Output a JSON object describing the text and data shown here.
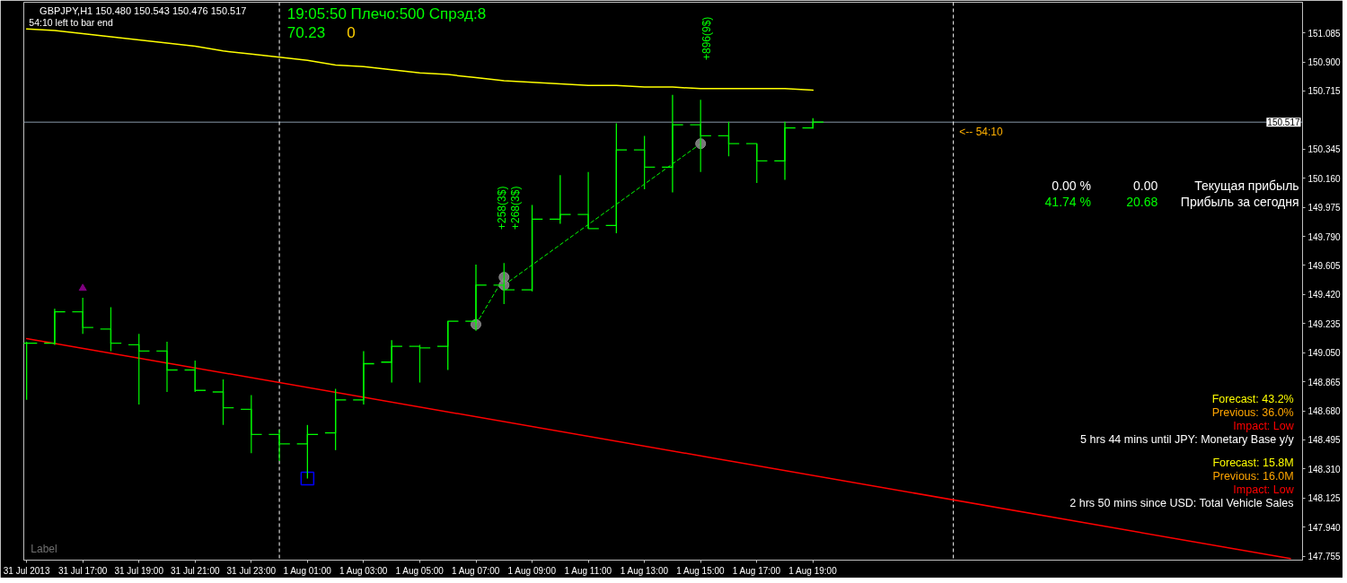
{
  "chart_data": {
    "type": "candlestick",
    "title": "GBPJPY,H1 150.480 150.543 150.476 150.517",
    "subtitle": "54:10 left to bar end",
    "colors": [
      "#00ff00",
      "#00ff00",
      "#00e800",
      "#00e800",
      "#00e800",
      "#00e800",
      "#00e800",
      "#00e800",
      "#00e800",
      "#00e800",
      "#00ff00",
      "#00ff00",
      "#00ff00",
      "#00ff00",
      "#00e800",
      "#00ff00",
      "#00ff00",
      "#00e800",
      "#00ff00",
      "#00ff00",
      "#00e800",
      "#00ff00",
      "#00e800",
      "#00ff00",
      "#00e800",
      "#00e800",
      "#00e800",
      "#00ff00",
      "#00ff00"
    ],
    "x": [
      "2013-07-31T15:00",
      "2013-07-31T16:00",
      "2013-07-31T17:00",
      "2013-07-31T18:00",
      "2013-07-31T19:00",
      "2013-07-31T20:00",
      "2013-07-31T21:00",
      "2013-07-31T22:00",
      "2013-07-31T23:00",
      "2013-08-01T00:00",
      "2013-08-01T01:00",
      "2013-08-01T02:00",
      "2013-08-01T03:00",
      "2013-08-01T04:00",
      "2013-08-01T05:00",
      "2013-08-01T06:00",
      "2013-08-01T07:00",
      "2013-08-01T08:00",
      "2013-08-01T09:00",
      "2013-08-01T10:00",
      "2013-08-01T11:00",
      "2013-08-01T12:00",
      "2013-08-01T13:00",
      "2013-08-01T14:00",
      "2013-08-01T15:00",
      "2013-08-01T16:00",
      "2013-08-01T17:00",
      "2013-08-01T18:00",
      "2013-08-01T19:00"
    ],
    "ohlc": [
      [
        149.11,
        149.12,
        148.75,
        149.11
      ],
      [
        149.11,
        149.33,
        149.1,
        149.31
      ],
      [
        149.31,
        149.4,
        149.17,
        149.21
      ],
      [
        149.2,
        149.34,
        149.06,
        149.11
      ],
      [
        149.1,
        149.17,
        148.72,
        149.06
      ],
      [
        149.06,
        149.12,
        148.8,
        148.94
      ],
      [
        148.94,
        149.0,
        148.8,
        148.81
      ],
      [
        148.8,
        148.88,
        148.59,
        148.7
      ],
      [
        148.69,
        148.78,
        148.41,
        148.53
      ],
      [
        148.53,
        148.56,
        148.36,
        148.47
      ],
      [
        148.47,
        148.59,
        148.25,
        148.53
      ],
      [
        148.54,
        148.82,
        148.43,
        148.75
      ],
      [
        148.75,
        149.06,
        148.72,
        148.98
      ],
      [
        148.99,
        149.13,
        148.86,
        149.09
      ],
      [
        149.09,
        149.1,
        148.86,
        149.08
      ],
      [
        149.09,
        149.25,
        148.94,
        149.25
      ],
      [
        149.25,
        149.61,
        149.19,
        149.48
      ],
      [
        149.48,
        149.62,
        149.36,
        149.45
      ],
      [
        149.45,
        149.99,
        149.44,
        149.9
      ],
      [
        149.9,
        150.18,
        149.87,
        149.93
      ],
      [
        149.93,
        150.2,
        149.84,
        149.84
      ],
      [
        149.86,
        150.51,
        149.81,
        150.34
      ],
      [
        150.34,
        150.43,
        150.09,
        150.23
      ],
      [
        150.23,
        150.69,
        150.07,
        150.5
      ],
      [
        150.5,
        150.66,
        150.2,
        150.43
      ],
      [
        150.43,
        150.52,
        150.3,
        150.38
      ],
      [
        150.38,
        150.38,
        150.13,
        150.27
      ],
      [
        150.27,
        150.52,
        150.15,
        150.48
      ],
      [
        150.48,
        150.543,
        150.476,
        150.517
      ]
    ],
    "series": [
      {
        "type": "line",
        "color": "#ffff00",
        "values": [
          151.11,
          151.1,
          151.08,
          151.06,
          151.04,
          151.02,
          151.0,
          150.97,
          150.95,
          150.93,
          150.91,
          150.88,
          150.87,
          150.85,
          150.83,
          150.82,
          150.8,
          150.78,
          150.77,
          150.76,
          150.75,
          150.75,
          150.74,
          150.74,
          150.73,
          150.73,
          150.73,
          150.73,
          150.72
        ]
      },
      {
        "type": "line",
        "color": "#ff0000",
        "x": [
          "2013-07-31T15:00",
          "2013-08-02T12:00"
        ],
        "values": [
          149.14,
          147.74
        ]
      },
      {
        "type": "line",
        "color": "#00ff00",
        "line_style": "dashed",
        "x": [
          "2013-08-01T07:00",
          "2013-08-01T08:00"
        ],
        "values": [
          149.23,
          149.53
        ]
      },
      {
        "type": "line",
        "color": "#00ff00",
        "line_style": "dashed",
        "x": [
          "2013-08-01T08:00",
          "2013-08-01T15:00"
        ],
        "values": [
          149.48,
          150.38
        ]
      },
      {
        "type": "scatter",
        "color": "#8c8c8c",
        "marker": "circle",
        "x": [
          "2013-08-01T07:00",
          "2013-08-01T08:00",
          "2013-08-01T08:00",
          "2013-08-01T15:00"
        ],
        "values": [
          149.23,
          149.53,
          149.48,
          150.38
        ]
      },
      {
        "type": "scatter",
        "color": "#0000ff",
        "marker": "square",
        "x": [
          "2013-08-01T01:00"
        ],
        "values": [
          148.25
        ]
      },
      {
        "type": "scatter",
        "color": "#800080",
        "marker": "triangle",
        "x": [
          "2013-07-31T17:00"
        ],
        "values": [
          149.46
        ]
      }
    ],
    "xlim": [
      "2013-07-31T14:54",
      "2013-08-02T12:26"
    ],
    "ylim": [
      147.73,
      151.28
    ],
    "xticks": [
      {
        "value": "2013-07-31T15:00",
        "label": "31 Jul 2013"
      },
      {
        "value": "2013-07-31T17:00",
        "label": "31 Jul 17:00"
      },
      {
        "value": "2013-07-31T19:00",
        "label": "31 Jul 19:00"
      },
      {
        "value": "2013-07-31T21:00",
        "label": "31 Jul 21:00"
      },
      {
        "value": "2013-07-31T23:00",
        "label": "31 Jul 23:00"
      },
      {
        "value": "2013-08-01T01:00",
        "label": "1 Aug 01:00"
      },
      {
        "value": "2013-08-01T03:00",
        "label": "1 Aug 03:00"
      },
      {
        "value": "2013-08-01T05:00",
        "label": "1 Aug 05:00"
      },
      {
        "value": "2013-08-01T07:00",
        "label": "1 Aug 07:00"
      },
      {
        "value": "2013-08-01T09:00",
        "label": "1 Aug 09:00"
      },
      {
        "value": "2013-08-01T11:00",
        "label": "1 Aug 11:00"
      },
      {
        "value": "2013-08-01T13:00",
        "label": "1 Aug 13:00"
      },
      {
        "value": "2013-08-01T15:00",
        "label": "1 Aug 15:00"
      },
      {
        "value": "2013-08-01T17:00",
        "label": "1 Aug 17:00"
      },
      {
        "value": "2013-08-01T19:00",
        "label": "1 Aug 19:00"
      }
    ],
    "yticks": [
      147.755,
      {
        "value": 147.94,
        "label": "147.940"
      },
      148.125,
      {
        "value": 148.31,
        "label": "148.310"
      },
      148.495,
      {
        "value": 148.68,
        "label": "148.680"
      },
      148.865,
      {
        "value": 149.05,
        "label": "149.050"
      },
      149.235,
      {
        "value": 149.42,
        "label": "149.420"
      },
      149.605,
      {
        "value": 149.79,
        "label": "149.790"
      },
      149.975,
      {
        "value": 150.16,
        "label": "150.160"
      },
      150.345,
      150.715,
      {
        "value": 150.9,
        "label": "150.900"
      },
      151.085
    ],
    "ref_lines": [
      {
        "axis": "y",
        "value": 150.517,
        "label": "150.517",
        "color": "#8899aa"
      },
      {
        "axis": "x",
        "value": "2013-08-01T00:00",
        "color": "#ffffff",
        "line_style": "dashed"
      },
      {
        "axis": "x",
        "value": "2013-08-02T00:00",
        "color": "#ffffff",
        "line_style": "dashed"
      }
    ],
    "annotations": [
      "19:05:50 Плечо:500 Спрэд:8",
      "70.23",
      "0",
      "0.00 %",
      "0.00",
      "Текущая прибыль",
      "41.74 %",
      "20.68",
      "Прибыль за сегодня",
      "Forecast: 43.2%",
      "Previous: 36.0%",
      "Impact: Low",
      "5 hrs 44 mins until JPY: Monetary Base y/y",
      "Forecast: 15.8M",
      "Previous: 16.0M",
      "Impact: Low",
      "2 hrs 50 mins since USD: Total Vehicle Sales",
      "Label",
      "<-- 54:10",
      "+258(3$)",
      "+268(3$)",
      "+896(9$)"
    ]
  }
}
